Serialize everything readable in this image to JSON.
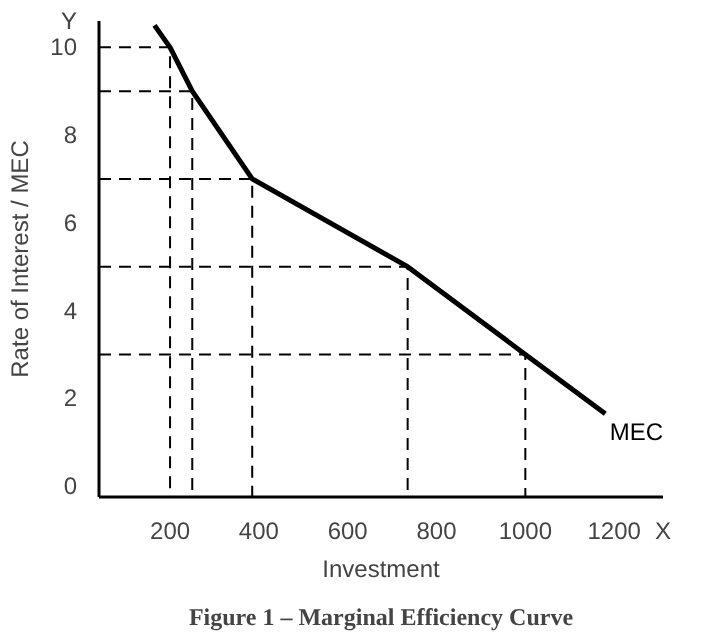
{
  "chart_data": {
    "type": "line",
    "title": "Figure 1 – Marginal Efficiency Curve",
    "xlabel": "Investment",
    "ylabel": "Rate of Interest / MEC",
    "annotations": [
      "Y",
      "X"
    ],
    "xlim": [
      40,
      1310
    ],
    "ylim": [
      -0.25,
      10.6
    ],
    "xticks": [
      200,
      400,
      600,
      800,
      1000,
      1200
    ],
    "yticks": [
      0,
      2,
      4,
      6,
      8,
      10
    ],
    "grid": false,
    "legend": false,
    "marker": "none",
    "series": [
      {
        "name": "MEC",
        "color": "#000000",
        "line_style": "solid",
        "x": [
          165,
          200,
          250,
          385,
          735,
          1000,
          1180
        ],
        "values": [
          10.5,
          10,
          9,
          7,
          5,
          3,
          1.65
        ]
      },
      {
        "type": "line",
        "color": "#000000",
        "line_style": "dashed",
        "x": [
          40,
          200,
          200
        ],
        "values": [
          10,
          10,
          -0.25
        ]
      },
      {
        "type": "line",
        "color": "#000000",
        "line_style": "dashed",
        "x": [
          40,
          250,
          250
        ],
        "values": [
          9,
          9,
          -0.25
        ]
      },
      {
        "type": "line",
        "color": "#000000",
        "line_style": "dashed",
        "x": [
          40,
          385,
          385
        ],
        "values": [
          7,
          7,
          -0.25
        ]
      },
      {
        "type": "line",
        "color": "#000000",
        "line_style": "dashed",
        "x": [
          40,
          735,
          735
        ],
        "values": [
          5,
          5,
          -0.25
        ]
      },
      {
        "type": "line",
        "color": "#000000",
        "line_style": "dashed",
        "x": [
          40,
          1000,
          1000
        ],
        "values": [
          3,
          3,
          -0.25
        ]
      }
    ]
  }
}
